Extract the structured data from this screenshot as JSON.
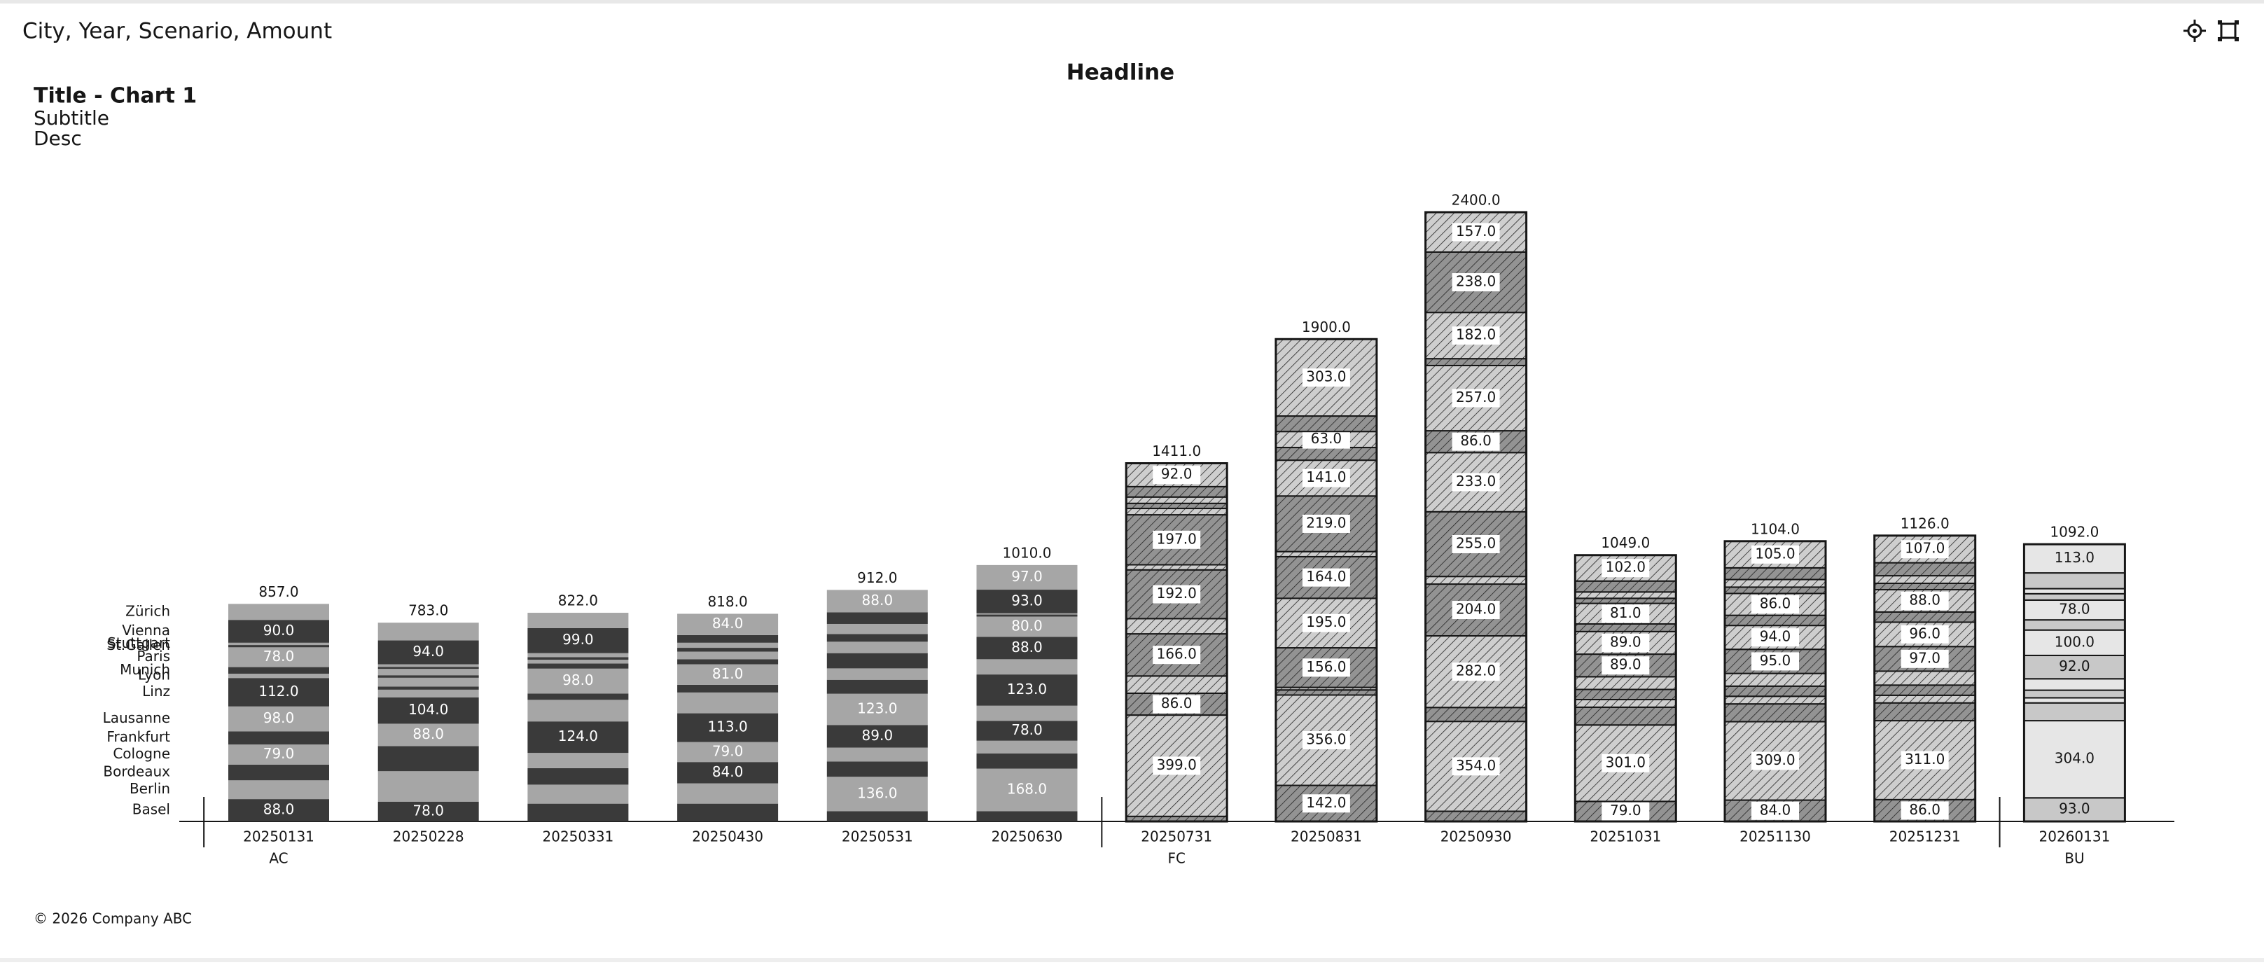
{
  "header": {
    "title": "City, Year, Scenario, Amount"
  },
  "footer": {
    "text": "© 2026 Company ABC"
  },
  "chart_data": {
    "type": "stacked-bar",
    "headline": "Headline",
    "title": "Title - Chart 1",
    "subtitle": "Subtitle",
    "description": "Desc",
    "categories": [
      "20250131",
      "20250228",
      "20250331",
      "20250430",
      "20250531",
      "20250630",
      "20250731",
      "20250831",
      "20250930",
      "20251031",
      "20251130",
      "20251231",
      "20260131"
    ],
    "scenarios": [
      "AC",
      "AC",
      "AC",
      "AC",
      "AC",
      "AC",
      "FC",
      "FC",
      "FC",
      "FC",
      "FC",
      "FC",
      "BU"
    ],
    "scenario_styles": {
      "AC": "solid",
      "FC": "hatched",
      "BU": "outlined"
    },
    "totals": [
      857,
      783,
      822,
      818,
      912,
      1010,
      1411,
      1900,
      2400,
      1049,
      1104,
      1126,
      1092
    ],
    "total_labels": [
      "857.0",
      "783.0",
      "822.0",
      "818.0",
      "912.0",
      "1010.0",
      "1411.0",
      "1900.0",
      "2400.0",
      "1049.0",
      "1104.0",
      "1126.0",
      "1092.0"
    ],
    "series": [
      {
        "name": "Basel",
        "color": "#3a3a3a",
        "values": [
          88,
          78,
          70,
          70,
          40,
          40,
          20,
          142,
          40,
          79,
          84,
          86,
          93
        ],
        "value_labels": [
          "88.0",
          "78.0",
          null,
          null,
          null,
          null,
          null,
          "142.0",
          null,
          "79.0",
          "84.0",
          "86.0",
          "93.0"
        ]
      },
      {
        "name": "Berlin",
        "color": "#a6a6a6",
        "values": [
          74,
          120,
          75,
          80,
          136,
          168,
          399,
          356,
          354,
          301,
          309,
          311,
          304
        ],
        "value_labels": [
          null,
          null,
          null,
          null,
          "136.0",
          "168.0",
          "399.0",
          "356.0",
          "354.0",
          "301.0",
          "309.0",
          "311.0",
          "304.0"
        ]
      },
      {
        "name": "Bordeaux",
        "color": "#3a3a3a",
        "values": [
          62,
          99,
          65,
          84,
          60,
          60,
          86,
          20,
          55,
          70,
          70,
          70,
          70
        ],
        "value_labels": [
          null,
          null,
          null,
          "84.0",
          null,
          null,
          "86.0",
          null,
          null,
          null,
          null,
          null,
          null
        ]
      },
      {
        "name": "Cologne",
        "color": "#a6a6a6",
        "values": [
          79,
          88,
          60,
          79,
          55,
          50,
          68,
          10,
          282,
          30,
          30,
          30,
          20
        ],
        "value_labels": [
          "79.0",
          "88.0",
          null,
          "79.0",
          null,
          null,
          null,
          null,
          "282.0",
          null,
          null,
          null,
          null
        ]
      },
      {
        "name": "Frankfurt",
        "color": "#3a3a3a",
        "values": [
          52,
          104,
          124,
          113,
          89,
          78,
          166,
          156,
          204,
          40,
          40,
          40,
          30
        ],
        "value_labels": [
          null,
          "104.0",
          "124.0",
          "113.0",
          "89.0",
          "78.0",
          "166.0",
          "156.0",
          "204.0",
          null,
          null,
          null,
          null
        ]
      },
      {
        "name": "Lausanne",
        "color": "#a6a6a6",
        "values": [
          98,
          30,
          85,
          82,
          123,
          60,
          60,
          195,
          30,
          50,
          50,
          55,
          45
        ],
        "value_labels": [
          "98.0",
          null,
          null,
          null,
          "123.0",
          null,
          null,
          "195.0",
          null,
          null,
          null,
          null,
          null
        ]
      },
      {
        "name": "Linz",
        "color": "#3a3a3a",
        "values": [
          112,
          12,
          25,
          30,
          55,
          123,
          192,
          164,
          255,
          89,
          95,
          97,
          92
        ],
        "value_labels": [
          "112.0",
          null,
          null,
          null,
          null,
          "123.0",
          "192.0",
          "164.0",
          "255.0",
          "89.0",
          "95.0",
          "97.0",
          "92.0"
        ]
      },
      {
        "name": "Lyon",
        "color": "#a6a6a6",
        "values": [
          17,
          35,
          98,
          81,
          45,
          60,
          20,
          20,
          233,
          89,
          94,
          96,
          100
        ],
        "value_labels": [
          null,
          null,
          "98.0",
          "81.0",
          null,
          null,
          null,
          null,
          "233.0",
          "89.0",
          "94.0",
          "96.0",
          "100.0"
        ]
      },
      {
        "name": "Munich",
        "color": "#3a3a3a",
        "values": [
          26,
          10,
          20,
          20,
          60,
          88,
          197,
          219,
          86,
          30,
          40,
          40,
          40
        ],
        "value_labels": [
          null,
          null,
          null,
          null,
          null,
          "88.0",
          "197.0",
          "219.0",
          "86.0",
          null,
          null,
          null,
          null
        ]
      },
      {
        "name": "Paris",
        "color": "#a6a6a6",
        "values": [
          78,
          25,
          15,
          30,
          45,
          80,
          25,
          141,
          257,
          81,
          86,
          88,
          78
        ],
        "value_labels": [
          "78.0",
          null,
          null,
          null,
          null,
          "80.0",
          null,
          "141.0",
          "257.0",
          "81.0",
          "86.0",
          "88.0",
          "78.0"
        ]
      },
      {
        "name": "St.Gallen",
        "color": "#3a3a3a",
        "values": [
          9,
          8,
          10,
          15,
          30,
          8,
          20,
          50,
          27,
          20,
          25,
          25,
          25
        ],
        "value_labels": [
          null,
          null,
          null,
          null,
          null,
          null,
          null,
          null,
          null,
          null,
          null,
          null,
          null
        ]
      },
      {
        "name": "Stuttgart",
        "color": "#a6a6a6",
        "values": [
          9,
          10,
          16,
          20,
          40,
          5,
          25,
          63,
          182,
          25,
          30,
          30,
          20
        ],
        "value_labels": [
          null,
          null,
          null,
          null,
          null,
          null,
          null,
          "63.0",
          "182.0",
          null,
          null,
          null,
          null
        ]
      },
      {
        "name": "Vienna",
        "color": "#3a3a3a",
        "values": [
          90,
          94,
          99,
          30,
          46,
          93,
          41,
          61,
          238,
          43,
          46,
          51,
          62
        ],
        "value_labels": [
          "90.0",
          "94.0",
          "99.0",
          null,
          null,
          "93.0",
          null,
          null,
          "238.0",
          null,
          null,
          null,
          null
        ]
      },
      {
        "name": "Zürich",
        "color": "#a6a6a6",
        "values": [
          63,
          70,
          60,
          84,
          88,
          97,
          92,
          303,
          157,
          102,
          105,
          107,
          113
        ],
        "value_labels": [
          null,
          null,
          null,
          "84.0",
          "88.0",
          "97.0",
          "92.0",
          "303.0",
          "157.0",
          "102.0",
          "105.0",
          "107.0",
          "113.0"
        ]
      }
    ]
  }
}
